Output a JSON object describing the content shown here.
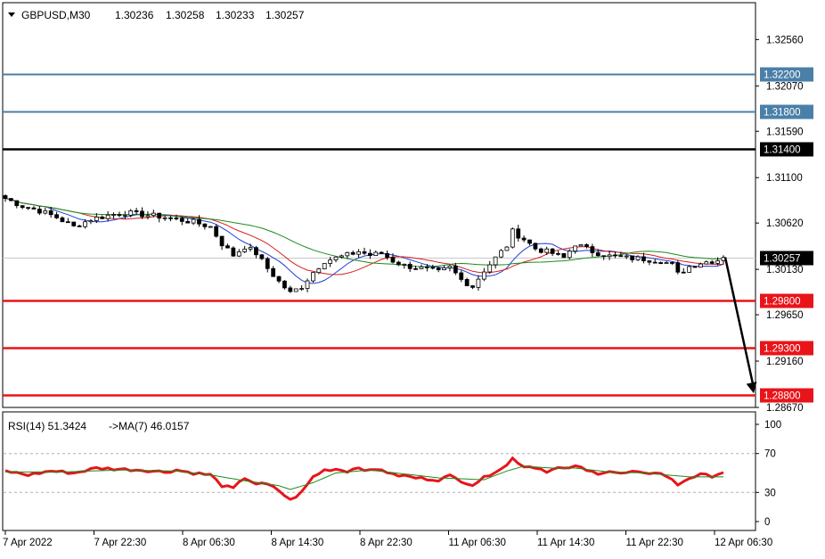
{
  "header": {
    "symbol": "GBPUSD,M30",
    "open": "1.30236",
    "high": "1.30258",
    "low": "1.30233",
    "close": "1.30257"
  },
  "rsi_header": {
    "label": "RSI(14) 51.3424",
    "ma_label": "->MA(7) 46.0157"
  },
  "colors": {
    "bull_candle": "#ffffff",
    "bear_candle": "#000000",
    "ma_fast": "#1f3fd6",
    "ma_mid": "#d62020",
    "ma_slow": "#1a8c1a",
    "resistance": "#4a7fa8",
    "pivot": "#000000",
    "support": "#e8141a",
    "rsi_line": "#e8141a",
    "rsi_ma": "#1a8c1a",
    "last_price": "#000000"
  },
  "chart_data": [
    {
      "type": "candlestick",
      "title": "GBPUSD,M30",
      "ylim": [
        1.2867,
        1.3295
      ],
      "y_ticks": [
        "1.32560",
        "1.32070",
        "1.31590",
        "1.31100",
        "1.30620",
        "1.30130",
        "1.29650",
        "1.29160",
        "1.28670"
      ],
      "x_ticks": [
        "7 Apr 2022",
        "7 Apr 22:30",
        "8 Apr 06:30",
        "8 Apr 14:30",
        "8 Apr 22:30",
        "11 Apr 06:30",
        "11 Apr 14:30",
        "11 Apr 22:30",
        "12 Apr 06:30"
      ],
      "price_path": [
        [
          0,
          1.3088
        ],
        [
          3,
          1.308
        ],
        [
          6,
          1.3075
        ],
        [
          9,
          1.3068
        ],
        [
          12,
          1.3058
        ],
        [
          15,
          1.3066
        ],
        [
          18,
          1.307
        ],
        [
          21,
          1.3073
        ],
        [
          24,
          1.3071
        ],
        [
          27,
          1.3069
        ],
        [
          30,
          1.3066
        ],
        [
          33,
          1.3063
        ],
        [
          36,
          1.3058
        ],
        [
          38,
          1.304
        ],
        [
          40,
          1.3028
        ],
        [
          42,
          1.3037
        ],
        [
          44,
          1.303
        ],
        [
          46,
          1.3014
        ],
        [
          48,
          1.3
        ],
        [
          50,
          1.2988
        ],
        [
          52,
          1.2995
        ],
        [
          54,
          1.301
        ],
        [
          56,
          1.3022
        ],
        [
          58,
          1.3025
        ],
        [
          60,
          1.3028
        ],
        [
          62,
          1.3032
        ],
        [
          64,
          1.3028
        ],
        [
          66,
          1.303
        ],
        [
          68,
          1.3022
        ],
        [
          70,
          1.3017
        ],
        [
          72,
          1.3015
        ],
        [
          74,
          1.3013
        ],
        [
          76,
          1.301
        ],
        [
          78,
          1.3015
        ],
        [
          80,
          1.3002
        ],
        [
          82,
          1.2995
        ],
        [
          84,
          1.3012
        ],
        [
          86,
          1.3025
        ],
        [
          88,
          1.3038
        ],
        [
          89,
          1.3053
        ],
        [
          91,
          1.3045
        ],
        [
          93,
          1.3035
        ],
        [
          96,
          1.303
        ],
        [
          98,
          1.3025
        ],
        [
          100,
          1.304
        ],
        [
          103,
          1.3032
        ],
        [
          106,
          1.3027
        ],
        [
          109,
          1.3025
        ],
        [
          112,
          1.3024
        ],
        [
          115,
          1.3022
        ],
        [
          117,
          1.3018
        ],
        [
          118,
          1.3008
        ],
        [
          120,
          1.3016
        ],
        [
          122,
          1.302
        ],
        [
          124,
          1.3022
        ],
        [
          126,
          1.3024
        ]
      ],
      "bar_count": 127,
      "moving_averages": [
        {
          "periods": 8,
          "color_key": "ma_fast"
        },
        {
          "periods": 14,
          "color_key": "ma_mid"
        },
        {
          "periods": 28,
          "color_key": "ma_slow"
        }
      ],
      "levels": [
        {
          "label": "1.32200",
          "value": 1.322,
          "kind": "resistance"
        },
        {
          "label": "1.31800",
          "value": 1.318,
          "kind": "resistance"
        },
        {
          "label": "1.31400",
          "value": 1.314,
          "kind": "pivot"
        },
        {
          "label": "1.29800",
          "value": 1.298,
          "kind": "support"
        },
        {
          "label": "1.29300",
          "value": 1.293,
          "kind": "support"
        },
        {
          "label": "1.28800",
          "value": 1.288,
          "kind": "support"
        }
      ],
      "last_price": {
        "label": "1.30257",
        "value": 1.30257
      },
      "projection": {
        "from": 1.30257,
        "to": 1.2882
      }
    },
    {
      "type": "line",
      "title": "RSI(14) 51.3424",
      "ylim": [
        0,
        100
      ],
      "y_ticks": [
        "100",
        "70",
        "30",
        "0"
      ],
      "levels": [
        70,
        30
      ],
      "series": [
        {
          "name": "RSI(14)",
          "color_key": "rsi_line",
          "values_path": [
            [
              0,
              52
            ],
            [
              4,
              48
            ],
            [
              8,
              52
            ],
            [
              12,
              50
            ],
            [
              16,
              55
            ],
            [
              20,
              54
            ],
            [
              24,
              53
            ],
            [
              28,
              51
            ],
            [
              30,
              53
            ],
            [
              33,
              50
            ],
            [
              36,
              48
            ],
            [
              38,
              37
            ],
            [
              40,
              34
            ],
            [
              42,
              45
            ],
            [
              44,
              39
            ],
            [
              46,
              38
            ],
            [
              48,
              32
            ],
            [
              50,
              22
            ],
            [
              52,
              30
            ],
            [
              54,
              46
            ],
            [
              56,
              53
            ],
            [
              58,
              54
            ],
            [
              60,
              52
            ],
            [
              62,
              56
            ],
            [
              64,
              52
            ],
            [
              66,
              54
            ],
            [
              68,
              48
            ],
            [
              70,
              47
            ],
            [
              72,
              45
            ],
            [
              74,
              44
            ],
            [
              76,
              43
            ],
            [
              78,
              47
            ],
            [
              80,
              42
            ],
            [
              82,
              38
            ],
            [
              84,
              45
            ],
            [
              86,
              52
            ],
            [
              88,
              58
            ],
            [
              89,
              65
            ],
            [
              91,
              57
            ],
            [
              93,
              56
            ],
            [
              95,
              52
            ],
            [
              97,
              55
            ],
            [
              99,
              54
            ],
            [
              100,
              58
            ],
            [
              102,
              52
            ],
            [
              104,
              50
            ],
            [
              106,
              52
            ],
            [
              108,
              49
            ],
            [
              110,
              51
            ],
            [
              112,
              49
            ],
            [
              114,
              51
            ],
            [
              116,
              47
            ],
            [
              118,
              38
            ],
            [
              120,
              45
            ],
            [
              122,
              48
            ],
            [
              124,
              47
            ],
            [
              126,
              51
            ]
          ]
        },
        {
          "name": "MA(7)",
          "color_key": "rsi_ma",
          "values_path": [
            [
              0,
              51
            ],
            [
              10,
              51
            ],
            [
              20,
              53
            ],
            [
              30,
              52
            ],
            [
              36,
              48
            ],
            [
              42,
              42
            ],
            [
              48,
              37
            ],
            [
              50,
              33
            ],
            [
              54,
              40
            ],
            [
              58,
              50
            ],
            [
              64,
              53
            ],
            [
              70,
              49
            ],
            [
              76,
              45
            ],
            [
              80,
              44
            ],
            [
              84,
              43
            ],
            [
              88,
              52
            ],
            [
              91,
              57
            ],
            [
              96,
              55
            ],
            [
              100,
              55
            ],
            [
              106,
              51
            ],
            [
              112,
              50
            ],
            [
              116,
              48
            ],
            [
              120,
              46
            ],
            [
              126,
              46
            ]
          ]
        }
      ]
    }
  ]
}
